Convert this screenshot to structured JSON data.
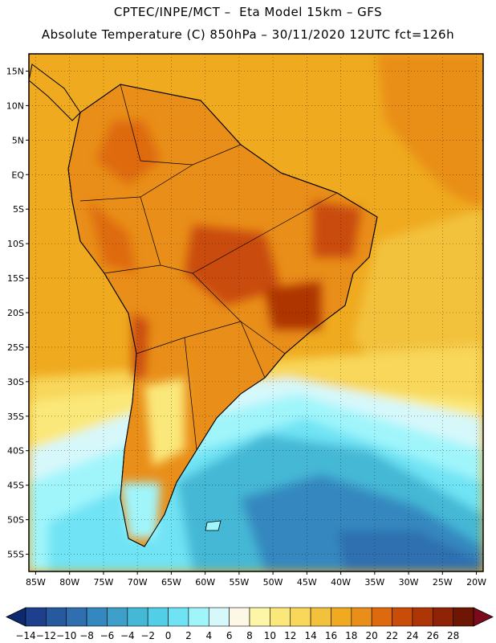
{
  "header": {
    "title_line1": "CPTEC/INPE/MCT –  Eta Model 15km – GFS",
    "title_line2": "Absolute Temperature (C) 850hPa – 30/11/2020 12UTC fct=126h"
  },
  "map": {
    "lat_labels": [
      "15N",
      "10N",
      "5N",
      "EQ",
      "5S",
      "10S",
      "15S",
      "20S",
      "25S",
      "30S",
      "35S",
      "40S",
      "45S",
      "50S",
      "55S"
    ],
    "lon_labels": [
      "85W",
      "80W",
      "75W",
      "70W",
      "65W",
      "60W",
      "55W",
      "50W",
      "45W",
      "40W",
      "35W",
      "30W",
      "25W",
      "20W"
    ]
  },
  "colorbar": {
    "labels": [
      "-14",
      "-12",
      "-10",
      "-8",
      "-6",
      "-4",
      "-2",
      "0",
      "2",
      "4",
      "6",
      "8",
      "10",
      "12",
      "14",
      "16",
      "18",
      "20",
      "22",
      "24",
      "26",
      "28"
    ],
    "colors": [
      "#1d3f8c",
      "#27599f",
      "#2f6fb0",
      "#3588bf",
      "#3ea0c9",
      "#45b8d6",
      "#52cfe6",
      "#6fe3f4",
      "#a0f5fb",
      "#d6f8fb",
      "#fdf8e6",
      "#fdf6a6",
      "#fbe87a",
      "#f8d75a",
      "#f3c23c",
      "#efaa1f",
      "#e98e19",
      "#de6a0f",
      "#c94c08",
      "#ae3606",
      "#8f2305",
      "#6e1504"
    ]
  },
  "annotations": {
    "core_warm_region": "24",
    "south_atlantic_cold": "-6"
  }
}
